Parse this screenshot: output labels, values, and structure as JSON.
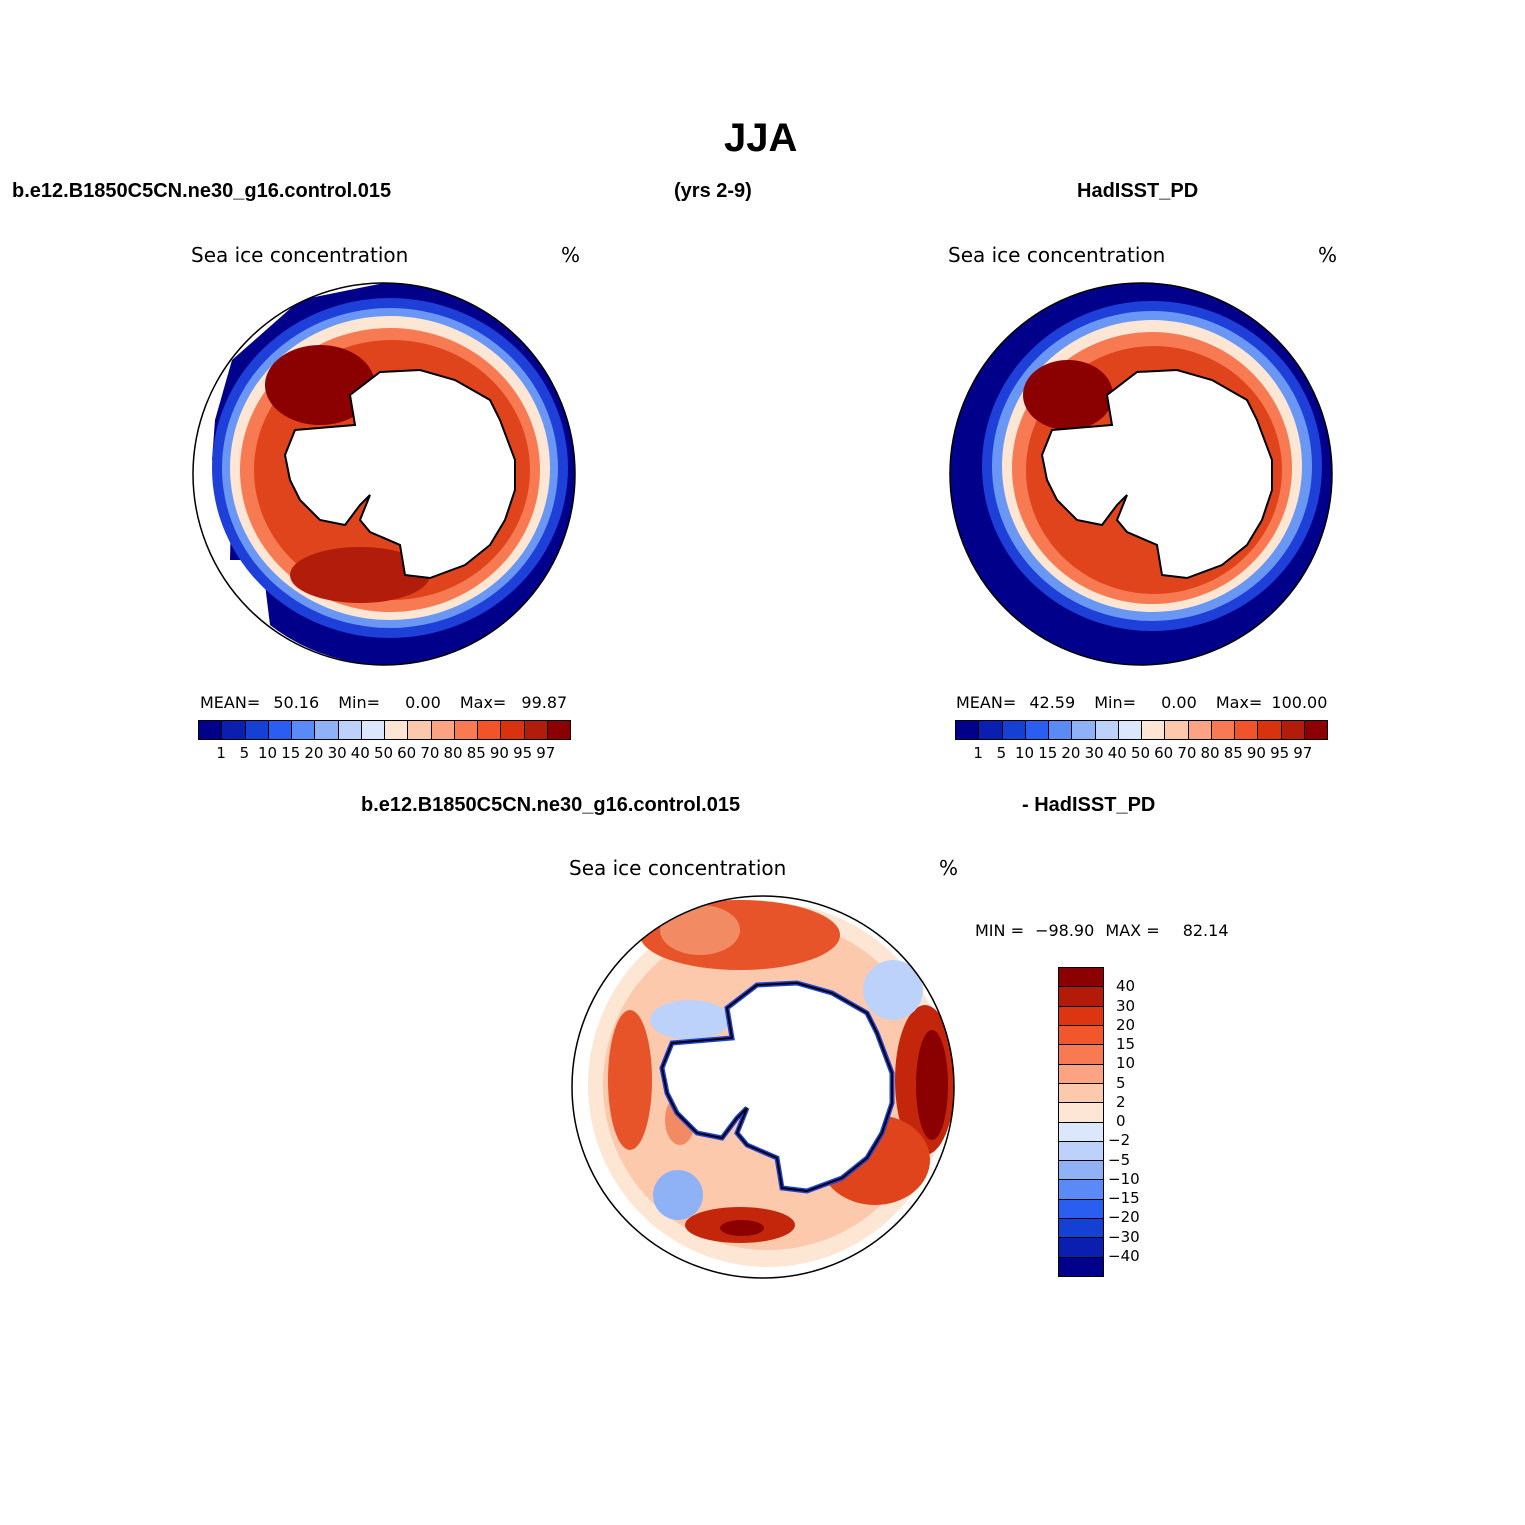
{
  "title": "JJA",
  "top": {
    "case_name": "b.e12.B1850C5CN.ne30_g16.control.015",
    "years": "(yrs 2-9)",
    "obs_name": "HadISST_PD"
  },
  "left_panel": {
    "variable": "Sea ice concentration",
    "units": "%",
    "mean_label": "MEAN=",
    "mean": "50.16",
    "min_label": "Min=",
    "min": "0.00",
    "max_label": "Max=",
    "max": "99.87"
  },
  "right_panel": {
    "variable": "Sea ice concentration",
    "units": "%",
    "mean_label": "MEAN=",
    "mean": "42.59",
    "min_label": "Min=",
    "min": "0.00",
    "max_label": "Max=",
    "max": "100.00"
  },
  "diff_header": {
    "case_name": "b.e12.B1850C5CN.ne30_g16.control.015",
    "obs_name": "- HadISST_PD"
  },
  "diff_panel": {
    "variable": "Sea ice concentration",
    "units": "%",
    "min_label": "MIN =",
    "min": "−98.90",
    "max_label": "MAX =",
    "max": "82.14"
  },
  "colorbar_abs": {
    "colors": [
      "#00008b",
      "#0a1fb0",
      "#1440d4",
      "#2a5ef0",
      "#5a8af5",
      "#8fb2f7",
      "#bcd2fa",
      "#dbe8fb",
      "#fde6d4",
      "#fcc9ad",
      "#fba383",
      "#f87a52",
      "#f1532b",
      "#d9320f",
      "#b11d0a",
      "#8b0000"
    ],
    "labels": [
      "1",
      "5",
      "10",
      "15",
      "20",
      "30",
      "40",
      "50",
      "60",
      "70",
      "80",
      "85",
      "90",
      "95",
      "97"
    ]
  },
  "colorbar_diff": {
    "colors": [
      "#8b0000",
      "#b31b08",
      "#dd3512",
      "#f2572c",
      "#f87a52",
      "#fba383",
      "#fcc9ad",
      "#fde6d4",
      "#dbe8fb",
      "#bcd2fa",
      "#8fb2f7",
      "#5a8af5",
      "#2a5ef0",
      "#1440d4",
      "#0a1fb0",
      "#00008b"
    ],
    "labels": [
      "40",
      "30",
      "20",
      "15",
      "10",
      "5",
      "2",
      "0",
      "−2",
      "−5",
      "−10",
      "−15",
      "−20",
      "−30",
      "−40"
    ]
  }
}
